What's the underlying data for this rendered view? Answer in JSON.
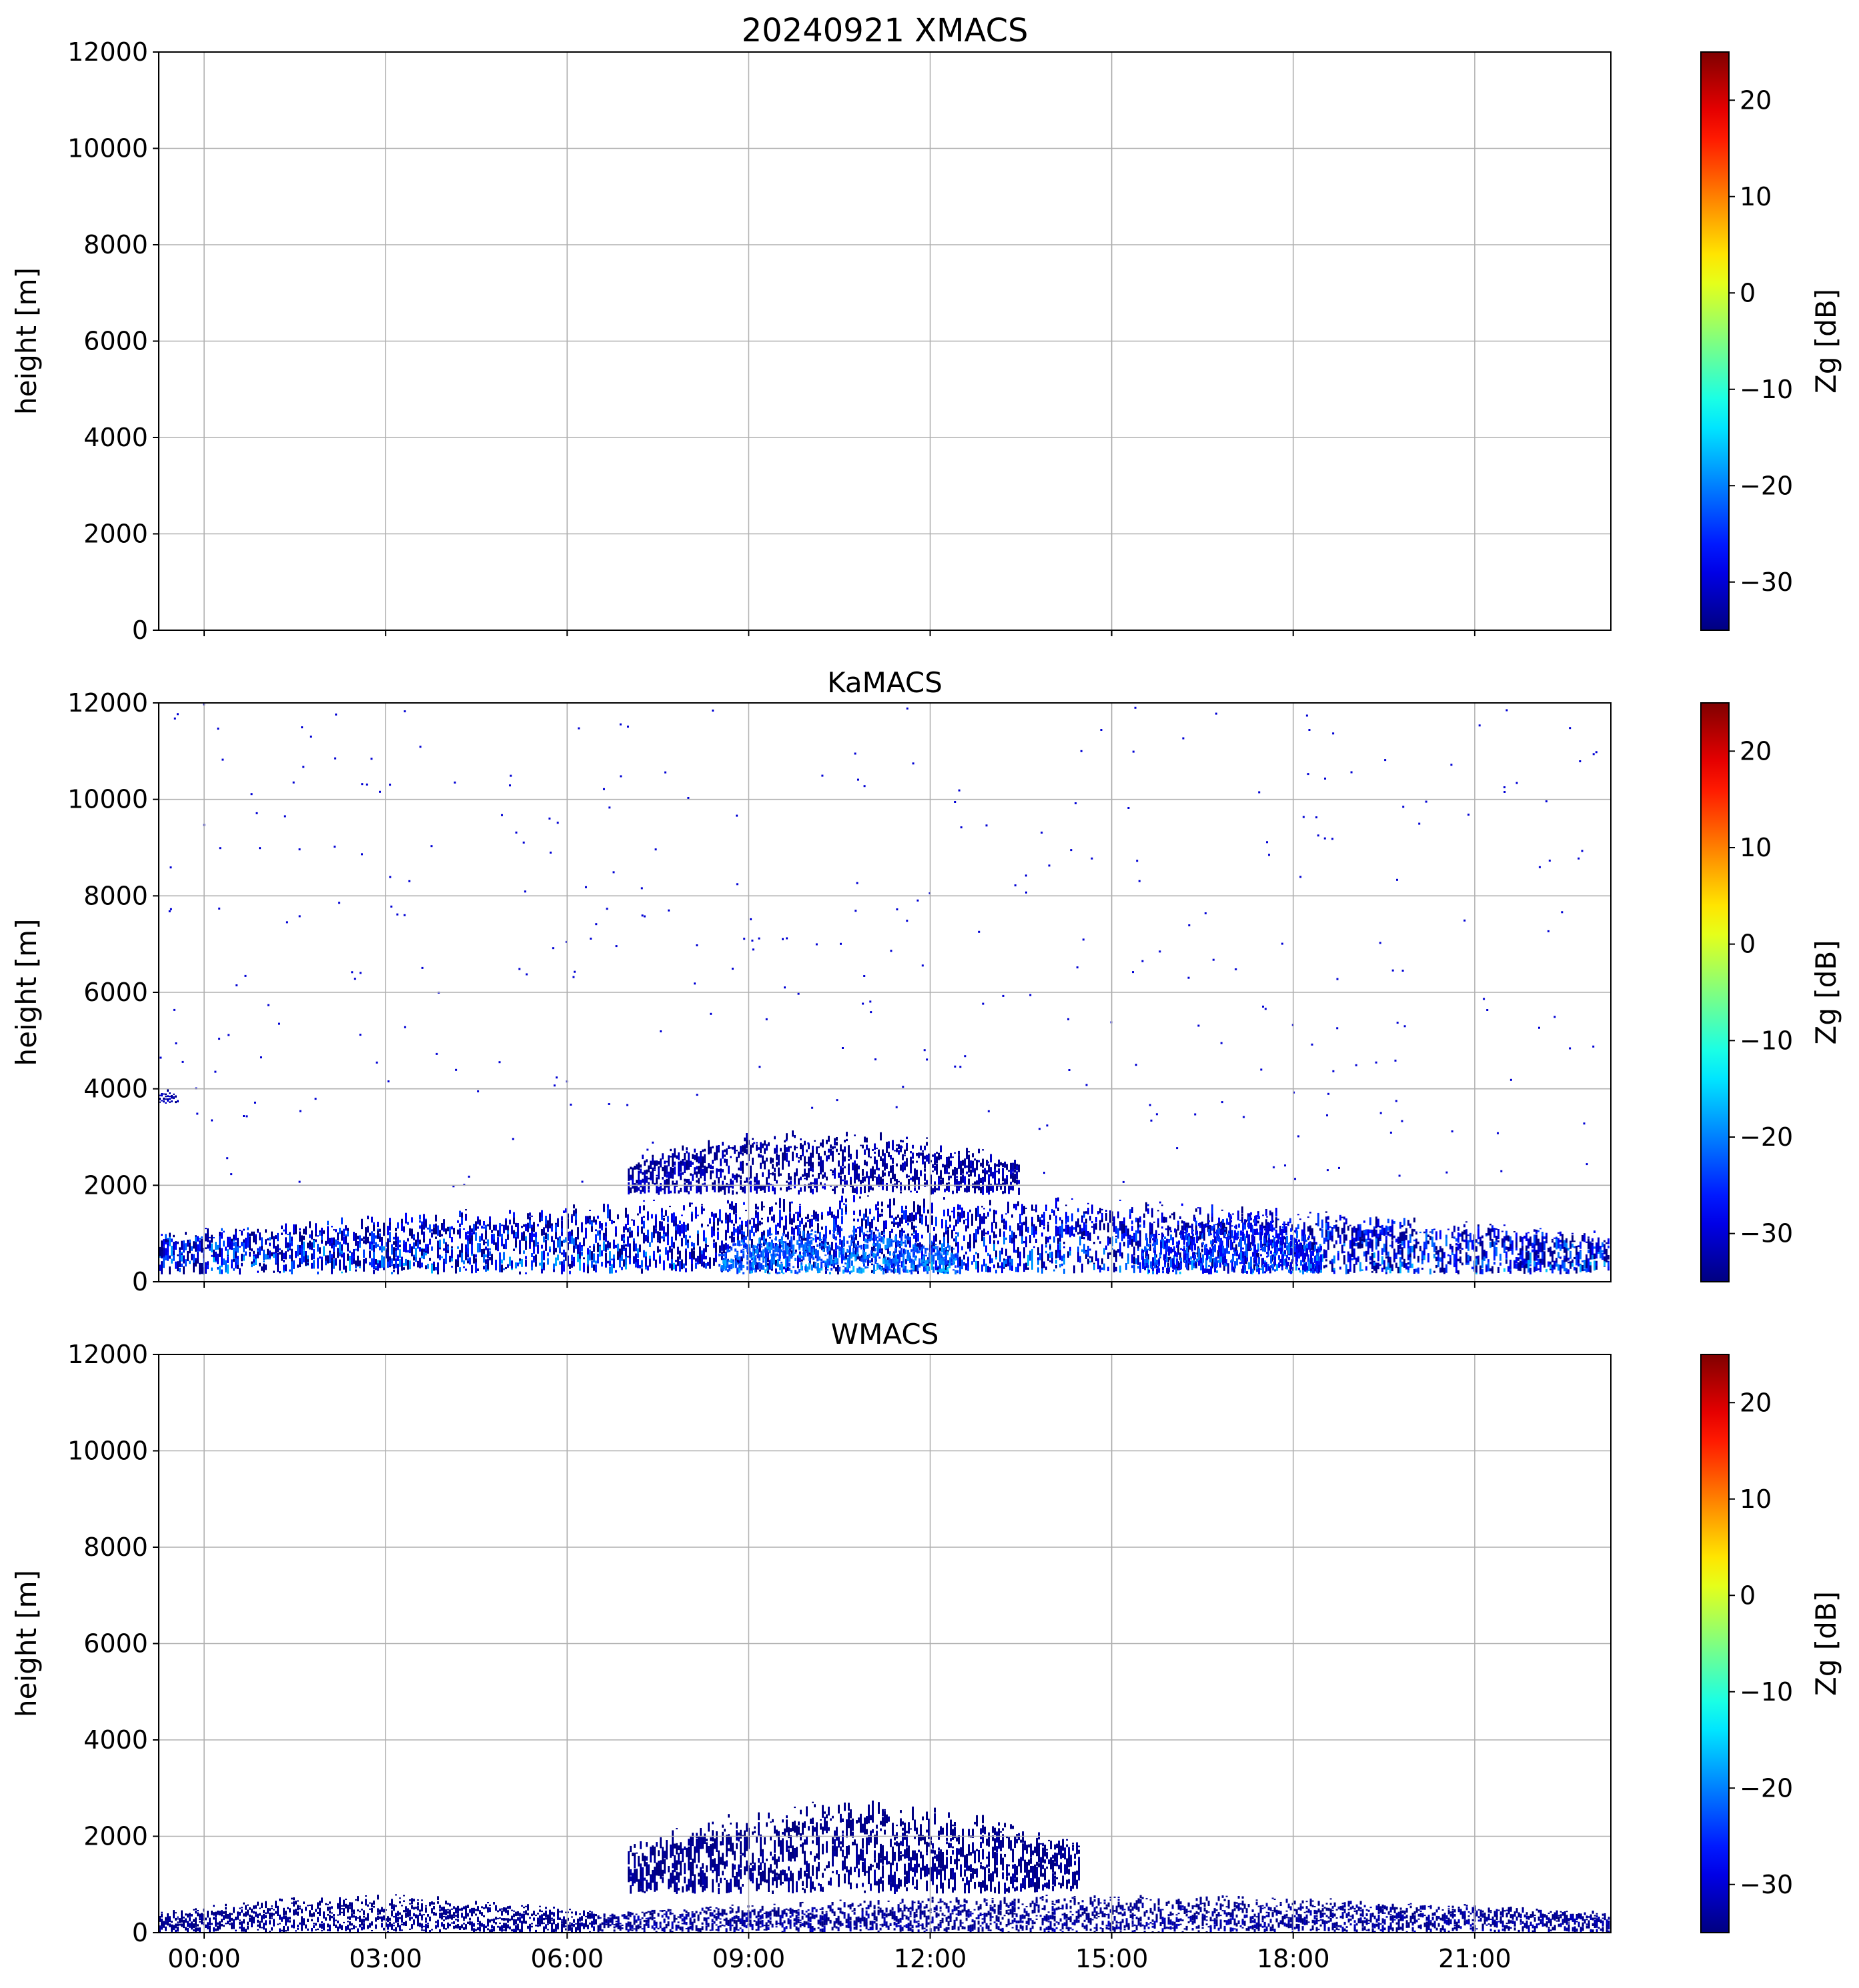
{
  "chart_data": [
    {
      "type": "heatmap",
      "title": "20240921 XMACS",
      "xlabel": "",
      "ylabel": "height [m]",
      "x_ticks": [
        "00:00",
        "03:00",
        "06:00",
        "09:00",
        "12:00",
        "15:00",
        "18:00",
        "21:00"
      ],
      "x_tick_show_labels": false,
      "xlim_hours": [
        -0.75,
        23.25
      ],
      "y_ticks": [
        0,
        2000,
        4000,
        6000,
        8000,
        10000,
        12000
      ],
      "ylim": [
        0,
        12000
      ],
      "grid": true,
      "colorbar": {
        "label": "Zg [dB]",
        "ticks": [
          -30,
          -20,
          -10,
          0,
          10,
          20
        ],
        "range": [
          -35,
          25
        ],
        "colormap": "jet"
      },
      "echo_regions": []
    },
    {
      "type": "heatmap",
      "title": "KaMACS",
      "xlabel": "",
      "ylabel": "height [m]",
      "x_ticks": [
        "00:00",
        "03:00",
        "06:00",
        "09:00",
        "12:00",
        "15:00",
        "18:00",
        "21:00"
      ],
      "x_tick_show_labels": false,
      "xlim_hours": [
        -0.75,
        23.25
      ],
      "y_ticks": [
        0,
        2000,
        4000,
        6000,
        8000,
        10000,
        12000
      ],
      "ylim": [
        0,
        12000
      ],
      "grid": true,
      "colorbar": {
        "label": "Zg [dB]",
        "ticks": [
          -30,
          -20,
          -10,
          0,
          10,
          20
        ],
        "range": [
          -35,
          25
        ],
        "colormap": "jet"
      },
      "echo_regions": [
        {
          "description": "main boundary-layer echo",
          "time_hours": [
            -0.75,
            23.25
          ],
          "height_m": [
            150,
            1800
          ],
          "zg_db": [
            -35,
            -15
          ]
        },
        {
          "description": "elevated scattered echo",
          "time_hours": [
            7.0,
            13.5
          ],
          "height_m": [
            1800,
            3200
          ],
          "zg_db": [
            -35,
            -28
          ]
        },
        {
          "description": "enhanced echo core",
          "time_hours": [
            8.5,
            12.5
          ],
          "height_m": [
            150,
            1200
          ],
          "zg_db": [
            -25,
            -15
          ]
        },
        {
          "description": "enhanced echo core",
          "time_hours": [
            15.5,
            18.5
          ],
          "height_m": [
            150,
            1500
          ],
          "zg_db": [
            -30,
            -18
          ]
        },
        {
          "description": "isolated echo near 3800 m",
          "time_hours": [
            -0.75,
            -0.4
          ],
          "height_m": [
            3700,
            4000
          ],
          "zg_db": [
            -35,
            -28
          ]
        }
      ],
      "sparse_noise": {
        "time_hours": [
          -0.75,
          23.25
        ],
        "height_m": [
          2000,
          12000
        ],
        "zg_db": -30
      }
    },
    {
      "type": "heatmap",
      "title": "WMACS",
      "xlabel": "",
      "ylabel": "height [m]",
      "x_ticks": [
        "00:00",
        "03:00",
        "06:00",
        "09:00",
        "12:00",
        "15:00",
        "18:00",
        "21:00"
      ],
      "x_tick_show_labels": true,
      "xlim_hours": [
        -0.75,
        23.25
      ],
      "y_ticks": [
        0,
        2000,
        4000,
        6000,
        8000,
        10000,
        12000
      ],
      "ylim": [
        0,
        12000
      ],
      "grid": true,
      "colorbar": {
        "label": "Zg [dB]",
        "ticks": [
          -30,
          -20,
          -10,
          0,
          10,
          20
        ],
        "range": [
          -35,
          25
        ],
        "colormap": "jet"
      },
      "echo_regions": [
        {
          "description": "main low-level echo",
          "time_hours": [
            6.5,
            23.25
          ],
          "height_m": [
            0,
            800
          ],
          "zg_db": [
            -35,
            -30
          ]
        },
        {
          "description": "upper scattered echo",
          "time_hours": [
            7.0,
            14.5
          ],
          "height_m": [
            800,
            2800
          ],
          "zg_db": [
            -35,
            -32
          ]
        },
        {
          "description": "sparse low-level echo",
          "time_hours": [
            -0.75,
            6.5
          ],
          "height_m": [
            0,
            800
          ],
          "zg_db": [
            -35,
            -32
          ]
        }
      ]
    }
  ]
}
